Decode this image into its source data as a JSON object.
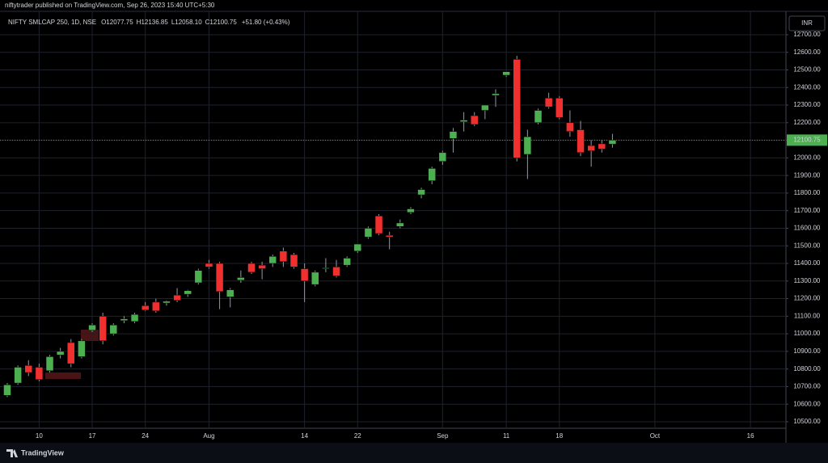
{
  "publisher": "niftytrader published on TradingView.com, Sep 26, 2023 15:40 UTC+5:30",
  "currency": "INR",
  "brand": "TradingView",
  "chart_data": {
    "type": "candlestick",
    "title": "NIFTY SMLCAP 250, 1D, NSE",
    "ohlc_legend": [
      "O12077.75",
      "H12136.85",
      "L12058.10",
      "C12100.75"
    ],
    "change": "+51.80 (+0.43%)",
    "up_color": "#4caf50",
    "down_color": "#f0302f",
    "grid": true,
    "categories": [
      null,
      null,
      null,
      "10",
      null,
      null,
      null,
      null,
      "17",
      null,
      null,
      null,
      null,
      "24",
      null,
      null,
      null,
      null,
      null,
      "Aug",
      null,
      null,
      null,
      null,
      null,
      null,
      null,
      null,
      "14",
      null,
      null,
      null,
      null,
      "22",
      null,
      null,
      null,
      null,
      null,
      null,
      null,
      "Sep",
      null,
      null,
      null,
      null,
      null,
      "11",
      null,
      null,
      null,
      null,
      "18",
      null,
      null,
      null,
      null,
      null,
      null,
      null,
      null,
      "Oct",
      null,
      null,
      null,
      null,
      null,
      null,
      null,
      null,
      "16",
      null,
      null
    ],
    "open": [
      10650,
      10720,
      10820,
      10810,
      10790,
      10880,
      10950,
      10870,
      11020,
      11100,
      11000,
      11075,
      11070,
      11160,
      11180,
      11175,
      11220,
      11225,
      11290,
      11400,
      11400,
      11210,
      11305,
      11400,
      11390,
      11400,
      11470,
      11450,
      11370,
      11280,
      11370,
      11380,
      11390,
      11470,
      11550,
      11670,
      11560,
      11610,
      11690,
      11790,
      11870,
      11980,
      12110,
      12205,
      12240,
      12270,
      12355,
      12470,
      12560,
      12020,
      12200,
      12340,
      12340,
      12200,
      12160,
      12070,
      12080,
      12077.75,
      null,
      null,
      null,
      null,
      null,
      null,
      null,
      null,
      null,
      null,
      null,
      null,
      null,
      null,
      null
    ],
    "high": [
      10720,
      10820,
      10850,
      10830,
      10880,
      10920,
      10970,
      10970,
      11060,
      11120,
      11060,
      11100,
      11120,
      11180,
      11200,
      11190,
      11260,
      11250,
      11370,
      11420,
      11410,
      11260,
      11360,
      11410,
      11410,
      11450,
      11490,
      11460,
      11400,
      11360,
      11430,
      11420,
      11440,
      11510,
      11610,
      11680,
      11580,
      11650,
      11720,
      11830,
      11950,
      12040,
      12170,
      12260,
      12260,
      12300,
      12390,
      12490,
      12580,
      12160,
      12280,
      12370,
      12350,
      12270,
      12210,
      12100,
      12100,
      12136.85,
      null,
      null,
      null,
      null,
      null,
      null,
      null,
      null,
      null,
      null,
      null,
      null,
      null,
      null,
      null
    ],
    "low": [
      10640,
      10710,
      10760,
      10730,
      10780,
      10860,
      10810,
      10860,
      11010,
      10940,
      10990,
      11060,
      11060,
      11130,
      11120,
      11160,
      11180,
      11210,
      11280,
      11370,
      11140,
      11150,
      11290,
      11340,
      11310,
      11380,
      11380,
      11370,
      11180,
      11270,
      11350,
      11320,
      11380,
      11460,
      11540,
      11560,
      11480,
      11600,
      11680,
      11770,
      11850,
      11960,
      12030,
      12150,
      12180,
      12220,
      12290,
      12460,
      11980,
      11880,
      12190,
      12280,
      12220,
      12120,
      12010,
      11950,
      12030,
      12058.1,
      null,
      null,
      null,
      null,
      null,
      null,
      null,
      null,
      null,
      null,
      null,
      null,
      null,
      null,
      null
    ],
    "close": [
      10710,
      10810,
      10780,
      10740,
      10870,
      10900,
      10830,
      10960,
      11050,
      10960,
      11050,
      11085,
      11110,
      11135,
      11130,
      11185,
      11190,
      11245,
      11360,
      11380,
      11240,
      11250,
      11320,
      11350,
      11370,
      11440,
      11410,
      11380,
      11300,
      11350,
      11375,
      11330,
      11430,
      11510,
      11600,
      11570,
      11550,
      11630,
      11710,
      11820,
      11940,
      12030,
      12150,
      12215,
      12190,
      12300,
      12365,
      12490,
      12000,
      12120,
      12270,
      12290,
      12230,
      12150,
      12030,
      12040,
      12050,
      12100.75,
      null,
      null,
      null,
      null,
      null,
      null,
      null,
      null,
      null,
      null,
      null,
      null,
      null,
      null,
      null
    ],
    "ylim": [
      10385,
      12833
    ],
    "yticks": [
      {
        "value": 10500,
        "label": "10500.00"
      },
      {
        "value": 10600,
        "label": "10600.00"
      },
      {
        "value": 10700,
        "label": "10700.00"
      },
      {
        "value": 10800,
        "label": "10800.00"
      },
      {
        "value": 10900,
        "label": "10900.00"
      },
      {
        "value": 11000,
        "label": "11000.00"
      },
      {
        "value": 11100,
        "label": "11100.00"
      },
      {
        "value": 11200,
        "label": "11200.00"
      },
      {
        "value": 11300,
        "label": "11300.00"
      },
      {
        "value": 11400,
        "label": "11400.00"
      },
      {
        "value": 11500,
        "label": "11500.00"
      },
      {
        "value": 11600,
        "label": "11600.00"
      },
      {
        "value": 11700,
        "label": "11700.00"
      },
      {
        "value": 11800,
        "label": "11800.00"
      },
      {
        "value": 11900,
        "label": "11900.00"
      },
      {
        "value": 12000,
        "label": "12000.00"
      },
      {
        "value": 12100,
        "label": "12100.00"
      },
      {
        "value": 12200,
        "label": "12200.00"
      },
      {
        "value": 12300,
        "label": "12300.00"
      },
      {
        "value": 12400,
        "label": "12400.00"
      },
      {
        "value": 12500,
        "label": "12500.00"
      },
      {
        "value": 12600,
        "label": "12600.00"
      },
      {
        "value": 12700,
        "label": "12700.00"
      }
    ]
  }
}
